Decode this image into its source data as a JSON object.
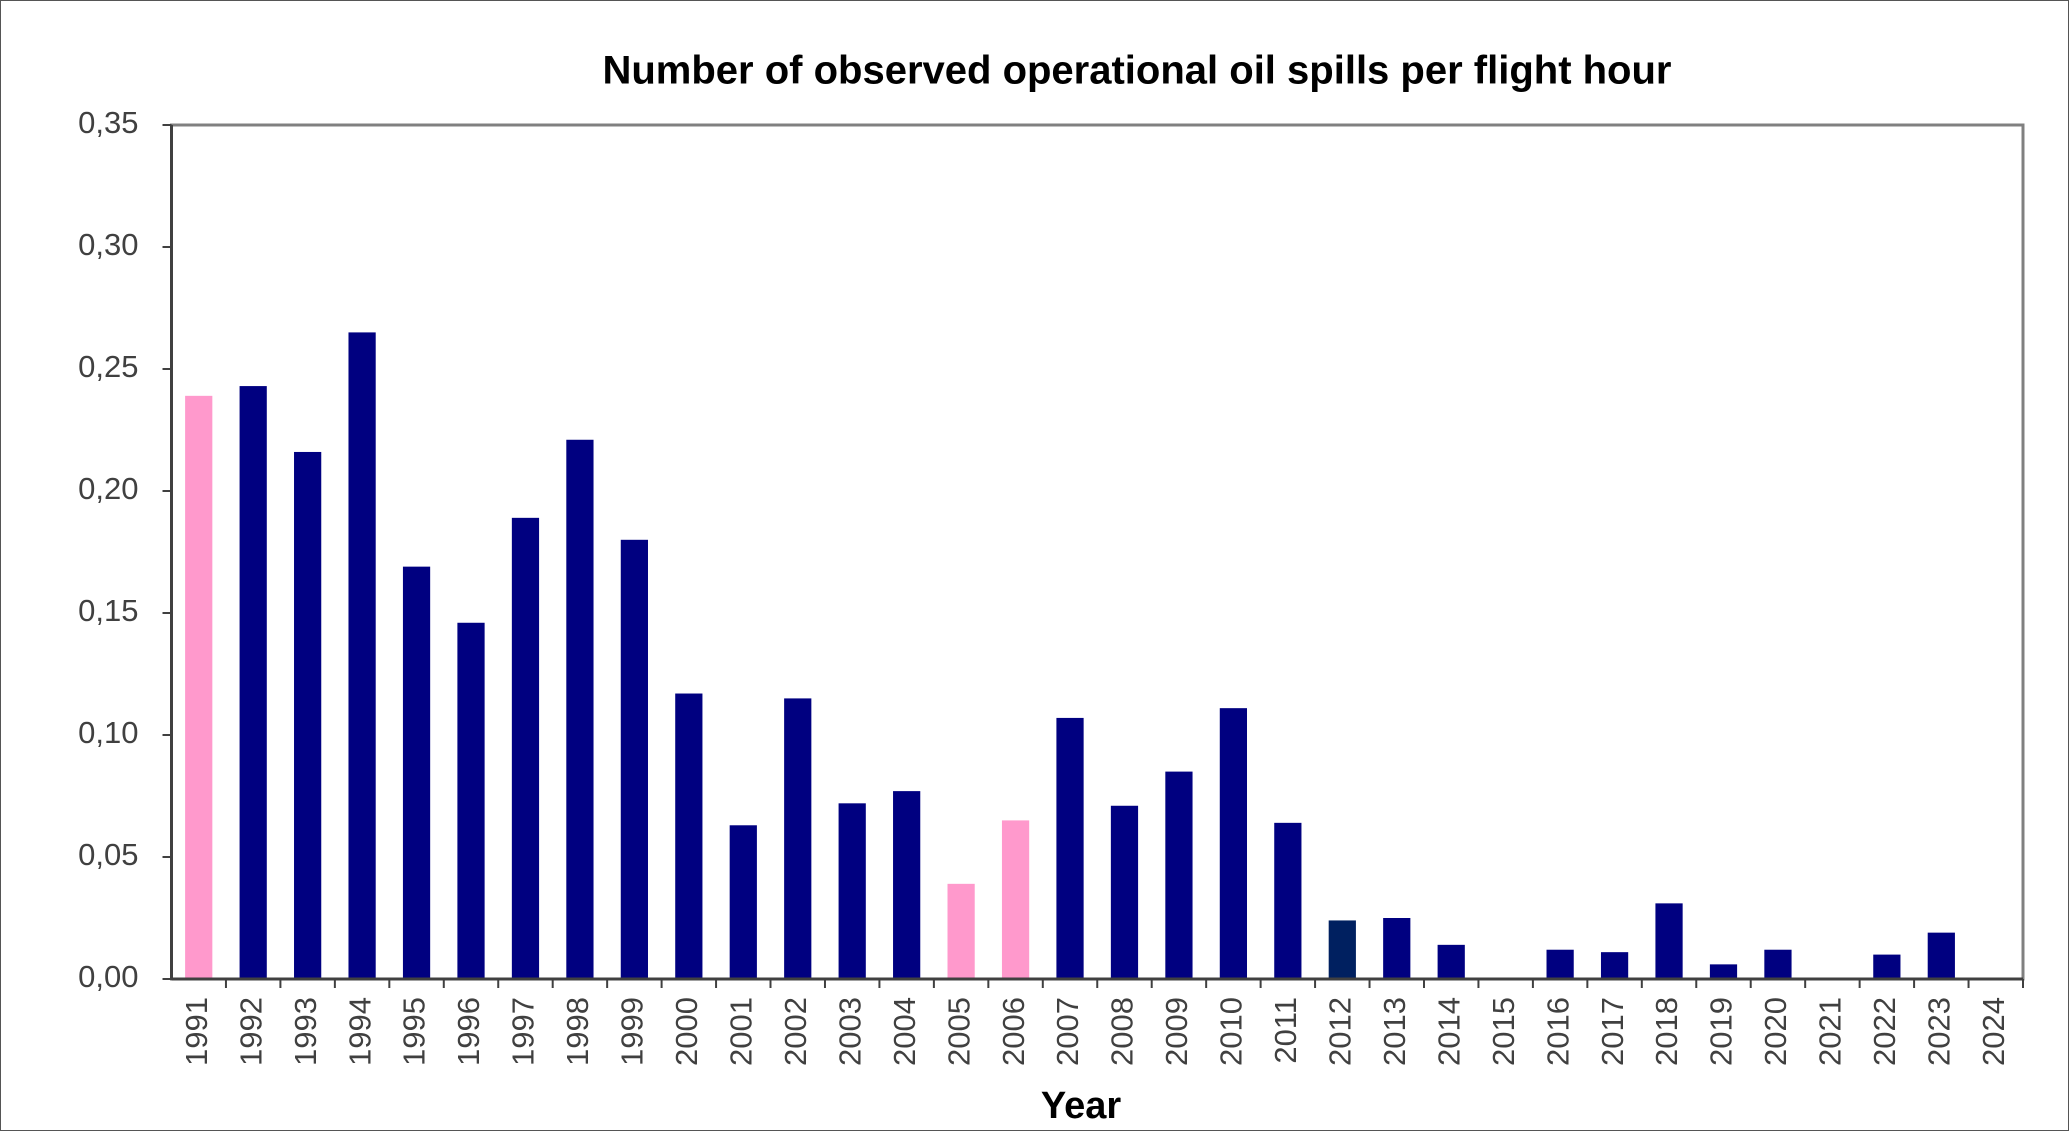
{
  "chart_data": {
    "type": "bar",
    "title": "Number of observed operational oil spills per flight hour",
    "x_label": "Year",
    "categories": [
      "1991",
      "1992",
      "1993",
      "1994",
      "1995",
      "1996",
      "1997",
      "1998",
      "1999",
      "2000",
      "2001",
      "2002",
      "2003",
      "2004",
      "2005",
      "2006",
      "2007",
      "2008",
      "2009",
      "2010",
      "2011",
      "2012",
      "2013",
      "2014",
      "2015",
      "2016",
      "2017",
      "2018",
      "2019",
      "2020",
      "2021",
      "2022",
      "2023",
      "2024"
    ],
    "values": [
      0.239,
      0.243,
      0.216,
      0.265,
      0.169,
      0.146,
      0.189,
      0.221,
      0.18,
      0.117,
      0.063,
      0.115,
      0.072,
      0.077,
      0.039,
      0.065,
      0.107,
      0.071,
      0.085,
      0.111,
      0.064,
      0.024,
      0.025,
      0.014,
      0,
      0.012,
      0.011,
      0.031,
      0.006,
      0.012,
      0,
      0.01,
      0.019,
      0
    ],
    "colors": [
      "#ff99cc",
      "#000080",
      "#000080",
      "#000080",
      "#000080",
      "#000080",
      "#000080",
      "#000080",
      "#000080",
      "#000080",
      "#000080",
      "#000080",
      "#000080",
      "#000080",
      "#ff99cc",
      "#ff99cc",
      "#000080",
      "#000080",
      "#000080",
      "#000080",
      "#000080",
      "#002060",
      "#000080",
      "#000080",
      "#000080",
      "#000080",
      "#000080",
      "#000080",
      "#000080",
      "#000080",
      "#000080",
      "#000080",
      "#000080",
      "#000080"
    ],
    "ylim": [
      0,
      0.35
    ],
    "yticks": [
      {
        "value": 0,
        "label": "0,00"
      },
      {
        "value": 0.05,
        "label": "0,05"
      },
      {
        "value": 0.1,
        "label": "0,10"
      },
      {
        "value": 0.15,
        "label": "0,15"
      },
      {
        "value": 0.2,
        "label": "0,20"
      },
      {
        "value": 0.25,
        "label": "0,25"
      },
      {
        "value": 0.3,
        "label": "0,30"
      },
      {
        "value": 0.35,
        "label": "0,35"
      }
    ],
    "grid": false
  }
}
